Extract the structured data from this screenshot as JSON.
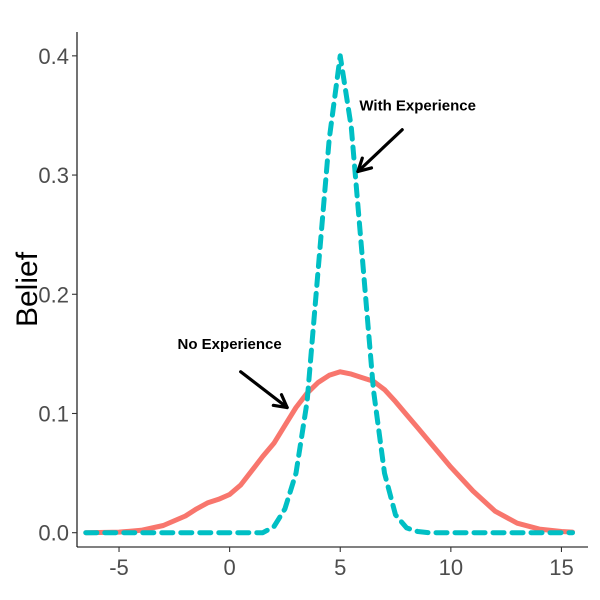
{
  "chart_data": {
    "type": "line",
    "title": "",
    "xlabel": "",
    "ylabel": "Belief",
    "xlim": [
      -6.9,
      16.2
    ],
    "ylim": [
      -0.012,
      0.42
    ],
    "x_ticks": [
      -5,
      0,
      5,
      10,
      15
    ],
    "x_tick_labels": [
      "-5",
      "0",
      "5",
      "10",
      "15"
    ],
    "y_ticks": [
      0.0,
      0.1,
      0.2,
      0.3,
      0.4
    ],
    "y_tick_labels": [
      "0.0",
      "0.1",
      "0.2",
      "0.3",
      "0.4"
    ],
    "grid": false,
    "legend": "none",
    "series": [
      {
        "style": "solid",
        "color": "#F8766D",
        "x": [
          -6.5,
          -5,
          -4,
          -3,
          -2,
          -1.5,
          -1,
          -0.5,
          0,
          0.5,
          1,
          1.5,
          2,
          2.5,
          3,
          3.5,
          4,
          4.5,
          5,
          5.5,
          6,
          6.5,
          7,
          7.5,
          8,
          8.5,
          9,
          9.5,
          10,
          11,
          12,
          13,
          14,
          15,
          15.5
        ],
        "y": [
          0.0,
          0.0005,
          0.002,
          0.006,
          0.014,
          0.02,
          0.025,
          0.028,
          0.032,
          0.04,
          0.052,
          0.064,
          0.075,
          0.09,
          0.105,
          0.117,
          0.126,
          0.132,
          0.135,
          0.133,
          0.13,
          0.127,
          0.12,
          0.11,
          0.099,
          0.088,
          0.077,
          0.066,
          0.055,
          0.035,
          0.018,
          0.008,
          0.003,
          0.001,
          0.0005
        ]
      },
      {
        "style": "dashed",
        "color": "#00BFC4",
        "x": [
          -6.5,
          1.5,
          2,
          2.5,
          3,
          3.5,
          4,
          4.5,
          5,
          5.5,
          6,
          6.5,
          7,
          7.5,
          8,
          8.5,
          9,
          15.5
        ],
        "y": [
          0.0,
          0.0,
          0.005,
          0.02,
          0.05,
          0.11,
          0.22,
          0.33,
          0.4,
          0.34,
          0.23,
          0.12,
          0.05,
          0.015,
          0.004,
          0.001,
          0.0,
          0.0
        ]
      }
    ],
    "annotations": [
      {
        "id": "no-experience",
        "text": "No Experience",
        "text_x": 0,
        "text_y": 0.154,
        "arrow_from": [
          0.5,
          0.135
        ],
        "arrow_to": [
          2.6,
          0.105
        ]
      },
      {
        "id": "with-experience",
        "text": "With Experience",
        "text_x": 8.5,
        "text_y": 0.354,
        "arrow_from": [
          7.8,
          0.338
        ],
        "arrow_to": [
          5.8,
          0.303
        ]
      }
    ]
  }
}
